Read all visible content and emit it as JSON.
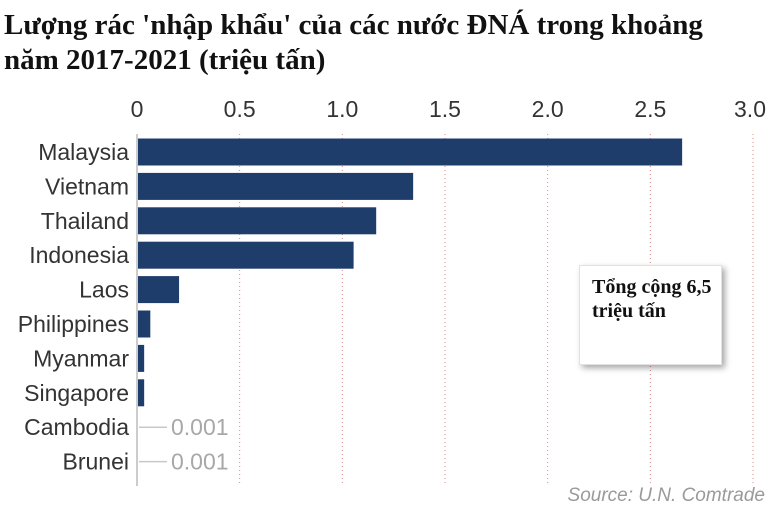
{
  "title": "Lượng rác 'nhập khẩu' của các nước ĐNÁ trong khoảng năm 2017-2021 (triệu tấn)",
  "callout": {
    "text": "Tổng cộng 6,5 triệu tấn"
  },
  "source": "Source: U.N. Comtrade",
  "colors": {
    "bar": "#1f3d6b",
    "grid": "#d98a8a",
    "axis": "#cccccc",
    "leader": "#c8c8c8"
  },
  "chart_data": {
    "type": "bar",
    "orientation": "horizontal",
    "title": "Lượng rác 'nhập khẩu' của các nước ĐNÁ trong khoảng năm 2017-2021 (triệu tấn)",
    "xlabel": "",
    "ylabel": "",
    "xlim": [
      0,
      3.0
    ],
    "ticks": [
      0,
      0.5,
      1.0,
      1.5,
      2.0,
      2.5,
      3.0
    ],
    "tick_labels": [
      "0",
      "0.5",
      "1.0",
      "1.5",
      "2.0",
      "2.5",
      "3.0"
    ],
    "grid": true,
    "categories": [
      "Malaysia",
      "Vietnam",
      "Thailand",
      "Indonesia",
      "Laos",
      "Philippines",
      "Myanmar",
      "Singapore",
      "Cambodia",
      "Brunei"
    ],
    "values": [
      2.65,
      1.34,
      1.16,
      1.05,
      0.2,
      0.06,
      0.03,
      0.03,
      0.001,
      0.001
    ],
    "data_labels": [
      null,
      null,
      null,
      null,
      null,
      null,
      null,
      null,
      "0.001",
      "0.001"
    ]
  }
}
